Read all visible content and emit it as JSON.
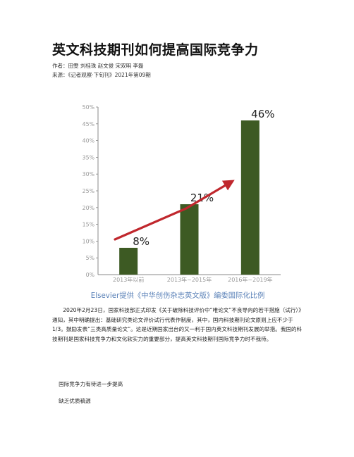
{
  "article": {
    "title": "英文科技期刊如何提高国际竞争力",
    "authors": "作者：田雯 刘桂珠 赵文俊 宋双明 李磊",
    "source": "来源：《记者观察·下旬刊》2021年第09期",
    "paragraphs": [
      "2020年2月23日，国家科技部正式印发《关于破除科技评价中“唯论文”不良导向的若干措施（试行）》通知，其中明确提出：基础研究类论文评价试行代表作制度，其中，国内科技期刊论文原则上应不少于1/3。鼓励发表“三类高质量论文”。这是近期国家出台的又一利于国内英文科技期刊发展的举措。我国的科技期刊是国家科技竞争力和文化软实力的重要部分，提高英文科技期刊国际竞争力时不我待。",
      "国际竞争力有待进一步提高",
      "缺乏优质稿源"
    ]
  },
  "chart_data": {
    "type": "bar",
    "categories": [
      "2013年以前",
      "2013年~2015年",
      "2016年~2019年"
    ],
    "values": [
      8,
      21,
      46
    ],
    "data_labels": [
      "8%",
      "21%",
      "46%"
    ],
    "y_ticks": [
      "0%",
      "5%",
      "10%",
      "15%",
      "20%",
      "25%",
      "30%",
      "35%",
      "40%",
      "45%",
      "50%"
    ],
    "ylim": [
      0,
      50
    ],
    "caption": "Elsevier提供《中华创伤杂志英文版》编委国际化比例",
    "colors": {
      "bar": "#3d5a23",
      "arrow": "#c0272d",
      "tick": "#999999",
      "axis": "#888888"
    },
    "grid": false
  }
}
